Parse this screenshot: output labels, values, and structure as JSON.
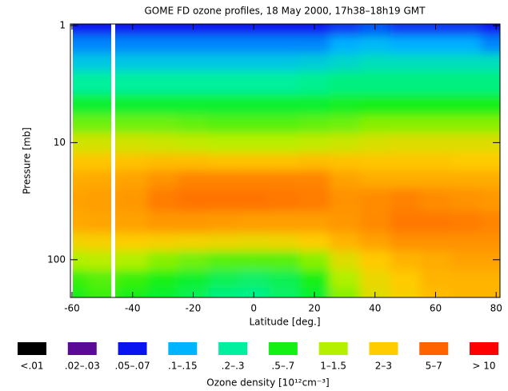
{
  "chart_data": {
    "type": "contour",
    "title": "GOME FD ozone profiles, 18 May 2000, 17h38–18h19 GMT",
    "xlabel": "Latitude [deg.]",
    "ylabel": "Pressure [mb]",
    "colorbar_label": "Ozone density [10¹²cm⁻³]",
    "xlim": [
      -60,
      81
    ],
    "xticks": [
      -60,
      -40,
      -20,
      0,
      20,
      40,
      60,
      80
    ],
    "ylim": [
      210,
      0.97
    ],
    "yticks": [
      1,
      10,
      100
    ],
    "y_scale": "log",
    "x": [
      -60,
      -50,
      -40,
      -30,
      -20,
      -10,
      0,
      10,
      20,
      30,
      40,
      50,
      60,
      70,
      80
    ],
    "y": [
      1,
      1.5,
      2,
      3,
      5,
      7,
      10,
      15,
      20,
      30,
      50,
      70,
      100,
      150,
      200
    ],
    "values": [
      [
        0.06,
        0.06,
        0.06,
        0.06,
        0.06,
        0.06,
        0.06,
        0.06,
        0.06,
        0.07,
        0.08,
        0.07,
        0.07,
        0.07,
        0.06
      ],
      [
        0.1,
        0.1,
        0.1,
        0.1,
        0.1,
        0.1,
        0.1,
        0.1,
        0.1,
        0.12,
        0.13,
        0.12,
        0.12,
        0.12,
        0.1
      ],
      [
        0.15,
        0.15,
        0.15,
        0.15,
        0.15,
        0.15,
        0.15,
        0.15,
        0.16,
        0.18,
        0.2,
        0.2,
        0.2,
        0.2,
        0.2
      ],
      [
        0.25,
        0.25,
        0.25,
        0.25,
        0.25,
        0.25,
        0.25,
        0.25,
        0.27,
        0.3,
        0.3,
        0.3,
        0.3,
        0.3,
        0.3
      ],
      [
        0.5,
        0.5,
        0.5,
        0.5,
        0.5,
        0.5,
        0.5,
        0.5,
        0.5,
        0.55,
        0.6,
        0.6,
        0.6,
        0.6,
        0.6
      ],
      [
        0.9,
        0.9,
        0.9,
        0.9,
        0.85,
        0.8,
        0.8,
        0.8,
        0.85,
        0.9,
        1,
        1,
        1,
        1,
        1
      ],
      [
        1.6,
        1.6,
        1.6,
        1.5,
        1.4,
        1.3,
        1.3,
        1.3,
        1.4,
        1.5,
        1.7,
        1.8,
        1.8,
        1.8,
        1.8
      ],
      [
        2.6,
        2.6,
        2.7,
        2.8,
        2.8,
        2.7,
        2.7,
        2.7,
        2.8,
        2.7,
        2.6,
        2.6,
        2.6,
        2.5,
        2.5
      ],
      [
        3.2,
        3.3,
        3.5,
        4,
        4.5,
        4.5,
        4.5,
        4.5,
        4.5,
        3.5,
        3.2,
        3.2,
        3.2,
        3.2,
        3.2
      ],
      [
        3.5,
        3.6,
        3.8,
        4.8,
        5.2,
        5.2,
        5.2,
        5,
        4.8,
        4,
        4.2,
        4.6,
        4.2,
        4,
        3.8
      ],
      [
        3.3,
        3.4,
        3.5,
        3.8,
        3.8,
        3.7,
        3.6,
        3.6,
        3.6,
        3.8,
        4.3,
        5,
        5,
        4.8,
        4.5
      ],
      [
        2.2,
        2.3,
        2.4,
        2.3,
        2.2,
        2.1,
        2,
        2.1,
        2.4,
        3,
        3.5,
        4,
        4,
        4,
        4
      ],
      [
        1.2,
        1.3,
        1.2,
        1,
        0.9,
        0.8,
        0.8,
        0.8,
        1,
        1.8,
        2.5,
        3,
        3.2,
        3.5,
        3.5
      ],
      [
        0.7,
        0.8,
        0.7,
        0.6,
        0.5,
        0.4,
        0.35,
        0.4,
        0.6,
        1.2,
        2,
        2.5,
        3,
        3,
        3
      ],
      [
        0.6,
        0.7,
        0.6,
        0.5,
        0.4,
        0.3,
        0.28,
        0.35,
        0.5,
        1,
        1.8,
        2.3,
        2.8,
        3,
        3
      ]
    ],
    "levels": [
      {
        "label": "<.01",
        "range": [
          null,
          0.01
        ],
        "color": "#000000"
      },
      {
        "label": ".02–.03",
        "range": [
          0.02,
          0.03
        ],
        "color": "#5a0a96"
      },
      {
        "label": ".05–.07",
        "range": [
          0.05,
          0.07
        ],
        "color": "#0a14f0"
      },
      {
        "label": ".1–.15",
        "range": [
          0.1,
          0.15
        ],
        "color": "#00b4ff"
      },
      {
        "label": ".2–.3",
        "range": [
          0.2,
          0.3
        ],
        "color": "#00f0a0"
      },
      {
        "label": ".5–.7",
        "range": [
          0.5,
          0.7
        ],
        "color": "#14f014"
      },
      {
        "label": "1–1.5",
        "range": [
          1,
          1.5
        ],
        "color": "#b4f000"
      },
      {
        "label": "2–3",
        "range": [
          2,
          3
        ],
        "color": "#ffcc00"
      },
      {
        "label": "5–7",
        "range": [
          5,
          7
        ],
        "color": "#ff6400"
      },
      {
        "label": "> 10",
        "range": [
          10,
          null
        ],
        "color": "#ff0000"
      }
    ]
  }
}
